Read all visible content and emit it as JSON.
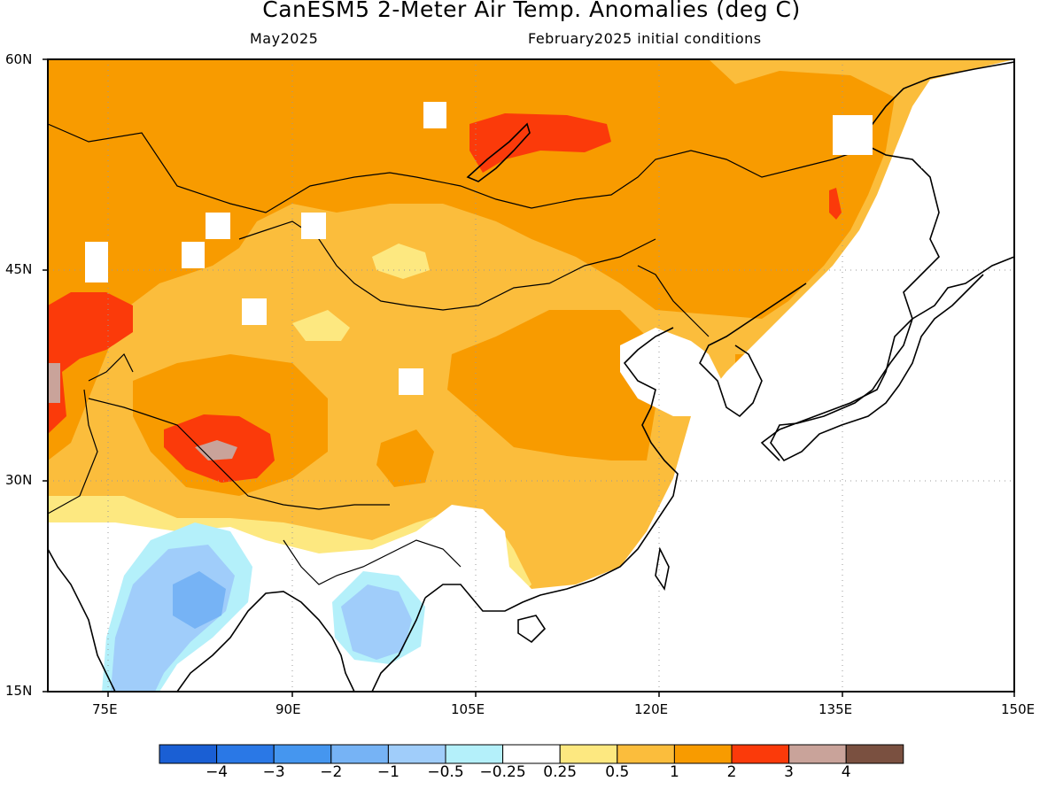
{
  "title": "CanESM5 2-Meter Air Temp. Anomalies (deg C)",
  "subtitle_left": "May2025",
  "subtitle_right": "February2025 initial conditions",
  "lat_labels": [
    "60N",
    "45N",
    "30N",
    "15N"
  ],
  "lon_labels": [
    "75E",
    "90E",
    "105E",
    "120E",
    "135E",
    "150E"
  ],
  "colorbar": {
    "colors": [
      "#1a5fd4",
      "#2a78e6",
      "#4596ef",
      "#76b3f5",
      "#a0cdfa",
      "#b4f0fa",
      "#ffffff",
      "#fde880",
      "#fbbd3c",
      "#f89b00",
      "#fb3a0a",
      "#c9a39a",
      "#7a5040"
    ],
    "labels": [
      "−4",
      "−3",
      "−2",
      "−1",
      "−0.5",
      "−0.25",
      "0.25",
      "0.5",
      "1",
      "2",
      "3",
      "4"
    ]
  }
}
